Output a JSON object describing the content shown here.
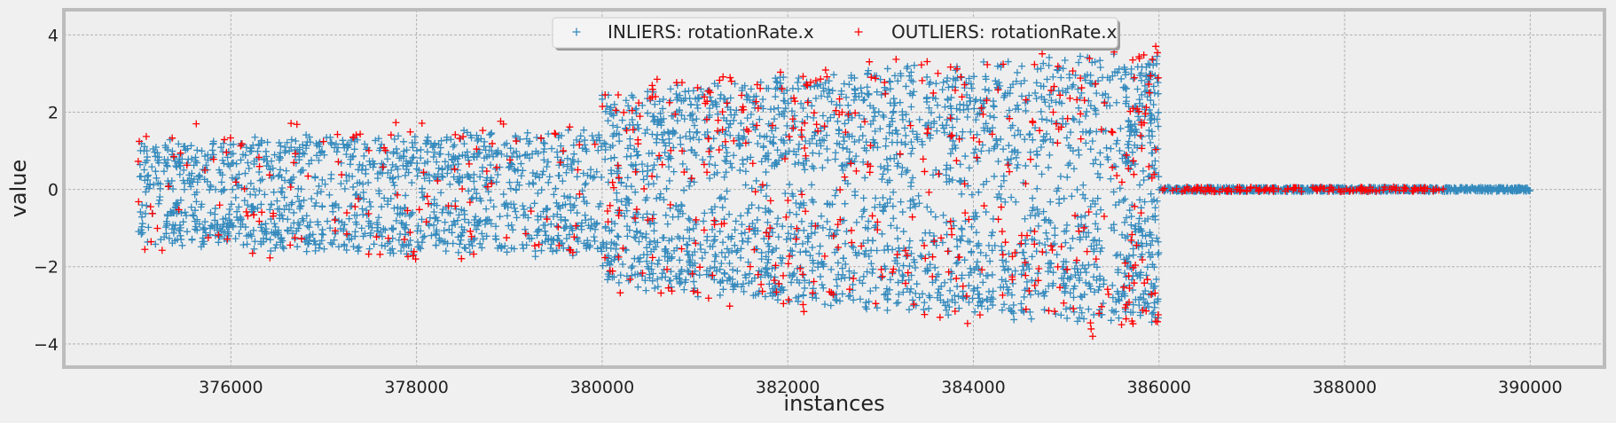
{
  "chart_data": {
    "type": "scatter",
    "xlabel": "instances",
    "ylabel": "value",
    "xlim": [
      374200,
      390800
    ],
    "ylim": [
      -4.6,
      4.65
    ],
    "x_ticks": [
      376000,
      378000,
      380000,
      382000,
      384000,
      386000,
      388000,
      390000
    ],
    "y_ticks": [
      -4,
      -2,
      0,
      2,
      4
    ],
    "grid": true,
    "legend": "top-center",
    "marker": "+",
    "series": [
      {
        "name": "INLIERS: rotationRate.x",
        "color": "#348abd",
        "segments": [
          {
            "x_start": 375000,
            "x_end": 380000,
            "center": -0.1,
            "amplitude_start": 1.3,
            "amplitude_end": 1.6,
            "count": 1300
          },
          {
            "x_start": 380000,
            "x_end": 382400,
            "center": 0.0,
            "amplitude_start": 2.4,
            "amplitude_end": 3.0,
            "count": 900
          },
          {
            "x_start": 382400,
            "x_end": 385600,
            "center": 0.0,
            "amplitude_start": 3.0,
            "amplitude_end": 3.4,
            "count": 1100
          },
          {
            "x_start": 385600,
            "x_end": 386000,
            "center": 0.0,
            "amplitude_start": 3.2,
            "amplitude_end": 3.5,
            "count": 250
          },
          {
            "x_start": 386000,
            "x_end": 390000,
            "center": 0.0,
            "amplitude_start": 0.05,
            "amplitude_end": 0.05,
            "count": 800
          }
        ]
      },
      {
        "name": "OUTLIERS: rotationRate.x",
        "color": "#ff0000",
        "segments": [
          {
            "x_start": 375000,
            "x_end": 380000,
            "center": 0.0,
            "amplitude_start": 1.6,
            "amplitude_end": 1.9,
            "count": 140
          },
          {
            "x_start": 380000,
            "x_end": 382400,
            "center": 0.0,
            "amplitude_start": 2.8,
            "amplitude_end": 3.2,
            "count": 170
          },
          {
            "x_start": 382400,
            "x_end": 385600,
            "center": 0.0,
            "amplitude_start": 3.3,
            "amplitude_end": 3.8,
            "count": 200
          },
          {
            "x_start": 385600,
            "x_end": 386000,
            "center": 0.0,
            "amplitude_start": 3.5,
            "amplitude_end": 4.0,
            "count": 60
          },
          {
            "x_start": 386000,
            "x_end": 389100,
            "center": 0.0,
            "amplitude_start": 0.06,
            "amplitude_end": 0.06,
            "count": 140
          }
        ]
      }
    ]
  }
}
